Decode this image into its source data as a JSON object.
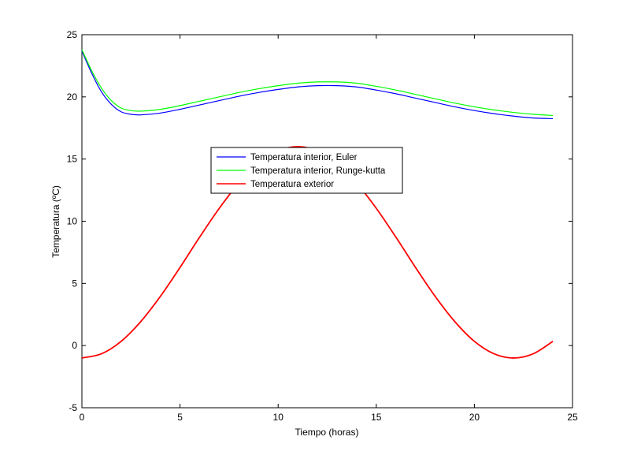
{
  "chart_data": {
    "type": "line",
    "title": "",
    "xlabel": "Tiempo (horas)",
    "ylabel": "Temperatura (ºC)",
    "xlim": [
      0,
      25
    ],
    "ylim": [
      -5,
      25
    ],
    "xticks": [
      0,
      5,
      10,
      15,
      20,
      25
    ],
    "yticks": [
      -5,
      0,
      5,
      10,
      15,
      20,
      25
    ],
    "grid": false,
    "legend_position": "center",
    "series": [
      {
        "name": "Temperatura interior, Euler",
        "color": "#0000ff",
        "x": [
          0,
          0.5,
          1,
          1.5,
          2,
          2.5,
          3,
          4,
          5,
          6,
          7,
          8,
          9,
          10,
          11,
          12,
          13,
          14,
          15,
          16,
          17,
          18,
          19,
          20,
          21,
          22,
          23,
          24
        ],
        "y": [
          23.7,
          21.9,
          20.4,
          19.4,
          18.8,
          18.6,
          18.55,
          18.7,
          19.0,
          19.35,
          19.7,
          20.05,
          20.35,
          20.6,
          20.8,
          20.9,
          20.9,
          20.8,
          20.55,
          20.25,
          19.9,
          19.55,
          19.2,
          18.9,
          18.65,
          18.45,
          18.3,
          18.25
        ]
      },
      {
        "name": "Temperatura interior, Runge-kutta",
        "color": "#00ff00",
        "x": [
          0,
          0.5,
          1,
          1.5,
          2,
          2.5,
          3,
          4,
          5,
          6,
          7,
          8,
          9,
          10,
          11,
          12,
          13,
          14,
          15,
          16,
          17,
          18,
          19,
          20,
          21,
          22,
          23,
          24
        ],
        "y": [
          23.8,
          22.1,
          20.7,
          19.7,
          19.1,
          18.9,
          18.85,
          19.0,
          19.3,
          19.65,
          20.0,
          20.35,
          20.65,
          20.9,
          21.1,
          21.2,
          21.2,
          21.1,
          20.85,
          20.55,
          20.2,
          19.85,
          19.5,
          19.2,
          18.95,
          18.75,
          18.6,
          18.5
        ]
      },
      {
        "name": "Temperatura exterior",
        "color": "#ff0000",
        "x": [
          0,
          1,
          2,
          3,
          4,
          5,
          6,
          7,
          8,
          9,
          10,
          11,
          12,
          13,
          14,
          15,
          16,
          17,
          18,
          19,
          20,
          21,
          22,
          23,
          24
        ],
        "y": [
          -1.0,
          -0.66,
          0.34,
          1.93,
          3.96,
          6.28,
          8.72,
          11.04,
          13.07,
          14.66,
          15.66,
          16.0,
          15.66,
          14.66,
          13.07,
          11.04,
          8.72,
          6.28,
          3.96,
          1.93,
          0.34,
          -0.66,
          -1.0,
          -0.66,
          0.34
        ]
      }
    ]
  }
}
